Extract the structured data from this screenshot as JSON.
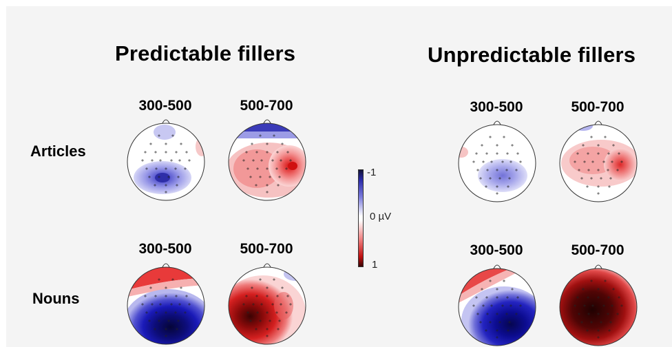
{
  "groups": {
    "predictable": "Predictable fillers",
    "unpredictable": "Unpredictable fillers"
  },
  "rows": {
    "articles": "Articles",
    "nouns": "Nouns"
  },
  "windows": {
    "early": "300-500",
    "late": "500-700"
  },
  "colorbar": {
    "top": "-1",
    "mid": "0 µV",
    "bottom": "1"
  },
  "colors": {
    "negative": "#0a0a90",
    "positive": "#b50000",
    "zero": "#ffffff"
  }
}
